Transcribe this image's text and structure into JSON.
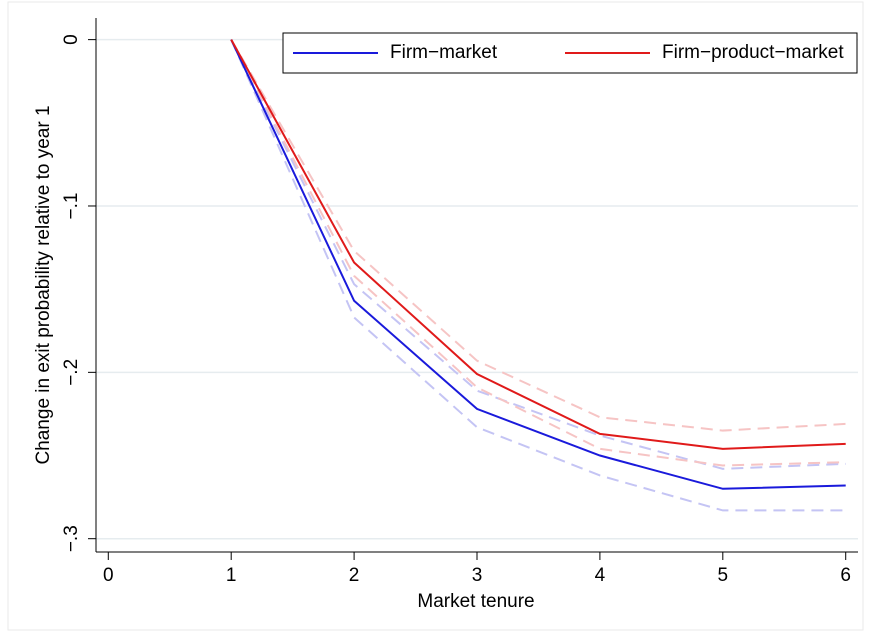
{
  "chart_data": {
    "type": "line",
    "x_label": "Market tenure",
    "y_label": "Change in exit probability relative to year 1",
    "x": [
      1,
      2,
      3,
      4,
      5,
      6
    ],
    "series": [
      {
        "name": "Firm−market",
        "color": "#1a1adb",
        "ci_color": "#c4c4f4",
        "values": [
          0,
          -0.157,
          -0.222,
          -0.25,
          -0.27,
          -0.268
        ],
        "ci_upper": [
          0,
          -0.147,
          -0.211,
          -0.238,
          -0.258,
          -0.255
        ],
        "ci_lower": [
          0,
          -0.167,
          -0.233,
          -0.262,
          -0.283,
          -0.283
        ]
      },
      {
        "name": "Firm−product−market",
        "color": "#e01a1a",
        "ci_color": "#f6c4c4",
        "values": [
          0,
          -0.134,
          -0.201,
          -0.237,
          -0.246,
          -0.243
        ],
        "ci_upper": [
          0,
          -0.127,
          -0.193,
          -0.227,
          -0.235,
          -0.231
        ],
        "ci_lower": [
          0,
          -0.142,
          -0.209,
          -0.246,
          -0.256,
          -0.254
        ]
      }
    ],
    "xlim": [
      -0.1,
      6.1
    ],
    "xticks": [
      0,
      1,
      2,
      3,
      4,
      5,
      6
    ],
    "ylim": [
      -0.308,
      0.013
    ],
    "yticks": [
      0,
      {
        "value": -0.1,
        "label": "−.1"
      },
      {
        "value": -0.2,
        "label": "−.2"
      },
      {
        "value": -0.3,
        "label": "−.3"
      }
    ],
    "grid": true,
    "legend": "top-right"
  }
}
